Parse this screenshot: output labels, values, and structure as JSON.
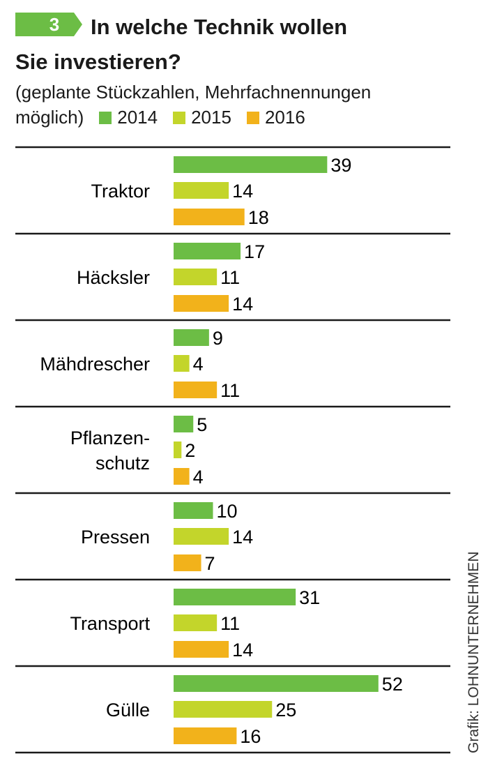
{
  "chart_data": {
    "type": "bar",
    "orientation": "horizontal",
    "badge": "3",
    "title": "In welche Technik wollen\nSie investieren?",
    "subtitle": "(geplante Stückzahlen, Mehrfachnennungen\nmöglich)",
    "credit": "Grafik: LOHNUNTERNEHMEN",
    "categories": [
      "Traktor",
      "Häcksler",
      "Mähdrescher",
      "Pflanzen-\nschutz",
      "Pressen",
      "Transport",
      "Gülle"
    ],
    "series": [
      {
        "name": "2014",
        "color": "#6cbd45",
        "values": [
          39,
          17,
          9,
          5,
          10,
          31,
          52
        ]
      },
      {
        "name": "2015",
        "color": "#c3d52b",
        "values": [
          14,
          11,
          4,
          2,
          14,
          11,
          25
        ]
      },
      {
        "name": "2016",
        "color": "#f2b21b",
        "values": [
          18,
          14,
          11,
          4,
          7,
          14,
          16
        ]
      }
    ]
  }
}
